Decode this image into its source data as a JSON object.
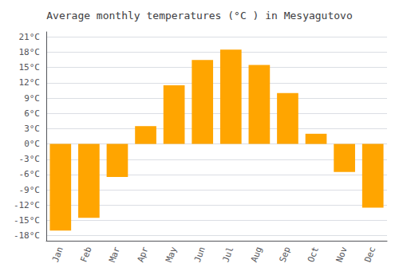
{
  "chart_data": {
    "type": "bar",
    "title": "Average monthly temperatures (°C ) in Mesyagutovo",
    "categories": [
      "Jan",
      "Feb",
      "Mar",
      "Apr",
      "May",
      "Jun",
      "Jul",
      "Aug",
      "Sep",
      "Oct",
      "Nov",
      "Dec"
    ],
    "values": [
      -17,
      -14.5,
      -6.5,
      3.5,
      11.5,
      16.5,
      18.5,
      15.5,
      10,
      2,
      -5.5,
      -12.5
    ],
    "color": "#FFA500",
    "ylim": [
      -19,
      22
    ],
    "yticks": [
      {
        "value": -18,
        "label": "-18°C"
      },
      {
        "value": -15,
        "label": "-15°C"
      },
      {
        "value": -12,
        "label": "-12°C"
      },
      {
        "value": -9,
        "label": "-9°C"
      },
      {
        "value": -6,
        "label": "-6°C"
      },
      {
        "value": -3,
        "label": "-3°C"
      },
      {
        "value": 0,
        "label": "0°C"
      },
      {
        "value": 3,
        "label": "3°C"
      },
      {
        "value": 6,
        "label": "6°C"
      },
      {
        "value": 9,
        "label": "9°C"
      },
      {
        "value": 12,
        "label": "12°C"
      },
      {
        "value": 15,
        "label": "15°C"
      },
      {
        "value": 18,
        "label": "18°C"
      },
      {
        "value": 21,
        "label": "21°C"
      }
    ],
    "grid": true
  }
}
